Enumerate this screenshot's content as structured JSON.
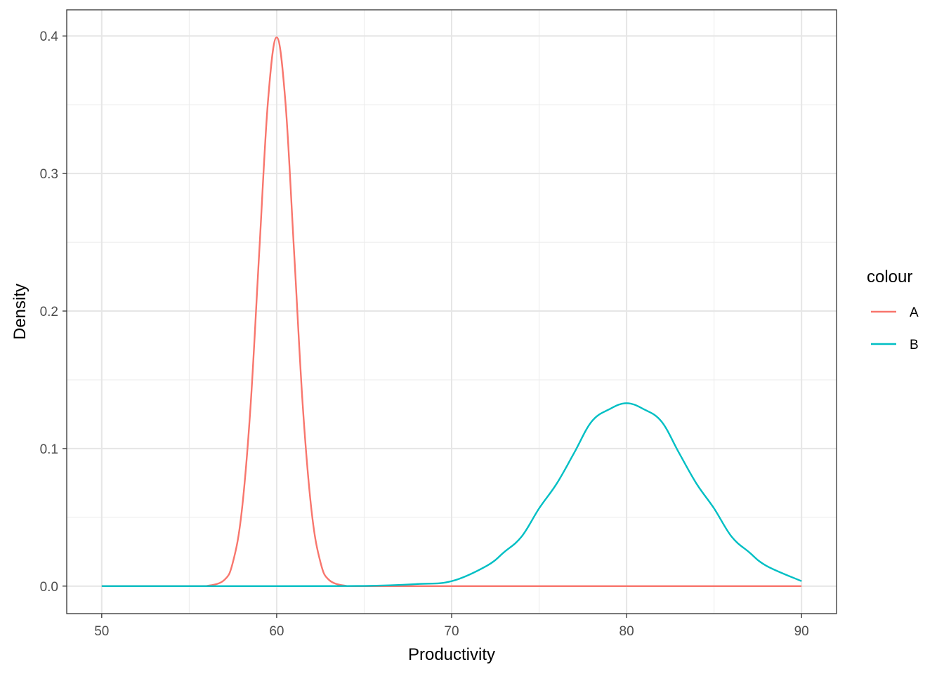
{
  "chart_data": {
    "type": "line",
    "xlabel": "Productivity",
    "ylabel": "Density",
    "xlim": [
      48,
      92
    ],
    "ylim": [
      -0.02,
      0.419
    ],
    "x_ticks": [
      50,
      60,
      70,
      80,
      90
    ],
    "x_tick_labels": [
      "50",
      "60",
      "70",
      "80",
      "90"
    ],
    "y_ticks": [
      0.0,
      0.1,
      0.2,
      0.3,
      0.4
    ],
    "y_tick_labels": [
      "0.0",
      "0.1",
      "0.2",
      "0.3",
      "0.4"
    ],
    "x_minor_ticks": [
      55,
      65,
      75,
      85
    ],
    "y_minor_ticks": [
      0.05,
      0.15,
      0.25,
      0.35
    ],
    "grid": true,
    "legend": {
      "title": "colour",
      "position": "right"
    },
    "series": [
      {
        "name": "A",
        "color": "#F8766D",
        "x": [
          50,
          55,
          56,
          57,
          57.5,
          58,
          58.5,
          59,
          59.5,
          60,
          60.5,
          61,
          61.5,
          62,
          62.5,
          63,
          64,
          65,
          70,
          75,
          80,
          85,
          90
        ],
        "y": [
          0,
          1.5e-06,
          0.00013,
          0.0044,
          0.0175,
          0.054,
          0.1295,
          0.242,
          0.352,
          0.399,
          0.352,
          0.242,
          0.1295,
          0.054,
          0.0175,
          0.0044,
          0.00013,
          1.5e-06,
          0,
          0,
          0,
          0,
          0
        ]
      },
      {
        "name": "B",
        "color": "#00BFC4",
        "x": [
          50,
          60,
          65,
          68,
          70,
          72,
          73,
          74,
          75,
          76,
          77,
          78,
          79,
          80,
          81,
          82,
          83,
          84,
          85,
          86,
          87,
          88,
          90
        ],
        "y": [
          0,
          2e-07,
          0.00015,
          0.0015,
          0.0036,
          0.0147,
          0.0247,
          0.036,
          0.0565,
          0.0744,
          0.0968,
          0.1196,
          0.1285,
          0.133,
          0.1285,
          0.1196,
          0.0968,
          0.0744,
          0.0565,
          0.036,
          0.0247,
          0.0147,
          0.0036
        ]
      }
    ]
  }
}
